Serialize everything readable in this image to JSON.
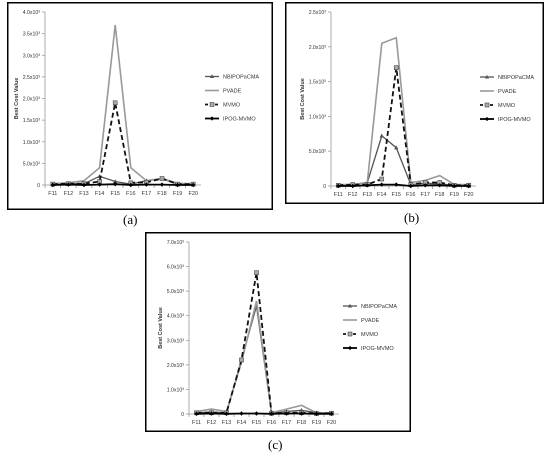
{
  "captions": [
    "(a)",
    "(b)",
    "(c)"
  ],
  "styles": {
    "NBIPOPaCMA": {
      "color": "#555555",
      "width": 1.3,
      "dash": "",
      "marker": "triangle"
    },
    "PVADE": {
      "color": "#999999",
      "width": 1.6,
      "dash": "",
      "marker": "none"
    },
    "MVMO": {
      "color": "#111111",
      "width": 1.8,
      "dash": "5,3",
      "marker": "square"
    },
    "IPOG-MVMO": {
      "color": "#000000",
      "width": 1.8,
      "dash": "",
      "marker": "diamond"
    }
  },
  "chart_data": [
    {
      "type": "line",
      "ylabel": "Best Cost Value",
      "categories": [
        "F11",
        "F12",
        "F13",
        "F14",
        "F15",
        "F16",
        "F17",
        "F18",
        "F19",
        "F20"
      ],
      "ylim": [
        0,
        4.0
      ],
      "ytick_values": [
        0,
        0.5,
        1.0,
        1.5,
        2.0,
        2.5,
        3.0,
        3.5,
        4.0
      ],
      "ytick_labels": [
        "0",
        "5.0x10²",
        "1.0x10³",
        "1.5x10³",
        "2.0x10³",
        "2.5x10³",
        "3.0x10³",
        "3.5x10³",
        "4.0x10³"
      ],
      "legend_position": "right",
      "series": [
        {
          "name": "NBIPOPaCMA",
          "values": [
            0.02,
            0.03,
            0.03,
            0.2,
            0.08,
            0.02,
            0.1,
            0.14,
            0.02,
            0.02
          ]
        },
        {
          "name": "PVADE",
          "values": [
            0.03,
            0.05,
            0.1,
            0.4,
            3.7,
            0.4,
            0.1,
            0.15,
            0.04,
            0.03
          ]
        },
        {
          "name": "MVMO",
          "values": [
            0.02,
            0.03,
            0.03,
            0.08,
            1.9,
            0.05,
            0.06,
            0.15,
            0.02,
            0.02
          ]
        },
        {
          "name": "IPOG-MVMO",
          "values": [
            0.0,
            0.01,
            0.0,
            0.01,
            0.02,
            0.0,
            0.01,
            0.01,
            0.0,
            0.0
          ]
        }
      ]
    },
    {
      "type": "line",
      "ylabel": "Best Cost Value",
      "categories": [
        "F11",
        "F12",
        "F13",
        "F14",
        "F15",
        "F16",
        "F17",
        "F18",
        "F19",
        "F20"
      ],
      "ylim": [
        0,
        2.5
      ],
      "ytick_values": [
        0,
        0.5,
        1.0,
        1.5,
        2.0,
        2.5
      ],
      "ytick_labels": [
        "0",
        "5.0x10²",
        "1.0x10³",
        "1.5x10³",
        "2.0x10³",
        "2.5x10³"
      ],
      "legend_position": "right",
      "series": [
        {
          "name": "NBIPOPaCMA",
          "values": [
            0.01,
            0.02,
            0.05,
            0.72,
            0.55,
            0.02,
            0.04,
            0.03,
            0.01,
            0.02
          ]
        },
        {
          "name": "PVADE",
          "values": [
            0.02,
            0.02,
            0.05,
            2.05,
            2.13,
            0.05,
            0.08,
            0.15,
            0.02,
            0.02
          ]
        },
        {
          "name": "MVMO",
          "values": [
            0.01,
            0.02,
            0.02,
            0.1,
            1.7,
            0.02,
            0.05,
            0.05,
            0.01,
            0.01
          ]
        },
        {
          "name": "IPOG-MVMO",
          "values": [
            0.0,
            0.0,
            0.01,
            0.02,
            0.02,
            0.0,
            0.01,
            0.01,
            0.0,
            0.0
          ]
        }
      ]
    },
    {
      "type": "line",
      "ylabel": "Best Cost Value",
      "categories": [
        "F11",
        "F12",
        "F13",
        "F14",
        "F15",
        "F16",
        "F17",
        "F18",
        "F19",
        "F20"
      ],
      "ylim": [
        0,
        7.0
      ],
      "ytick_values": [
        0,
        1,
        2,
        3,
        4,
        5,
        6,
        7
      ],
      "ytick_labels": [
        "0",
        "1.0x10³",
        "2.0x10³",
        "3.0x10³",
        "4.0x10³",
        "5.0x10³",
        "6.0x10³",
        "7.0x10³"
      ],
      "legend_position": "right",
      "series": [
        {
          "name": "NBIPOPaCMA",
          "values": [
            0.05,
            0.08,
            0.05,
            2.2,
            4.4,
            0.03,
            0.1,
            0.15,
            0.05,
            0.04
          ]
        },
        {
          "name": "PVADE",
          "values": [
            0.1,
            0.2,
            0.1,
            2.1,
            4.6,
            0.05,
            0.2,
            0.35,
            0.05,
            0.05
          ]
        },
        {
          "name": "MVMO",
          "values": [
            0.05,
            0.05,
            0.05,
            2.2,
            5.75,
            0.03,
            0.05,
            0.05,
            0.02,
            0.03
          ]
        },
        {
          "name": "IPOG-MVMO",
          "values": [
            0.01,
            0.02,
            0.01,
            0.02,
            0.02,
            0.01,
            0.02,
            0.02,
            0.01,
            0.01
          ]
        }
      ]
    }
  ]
}
